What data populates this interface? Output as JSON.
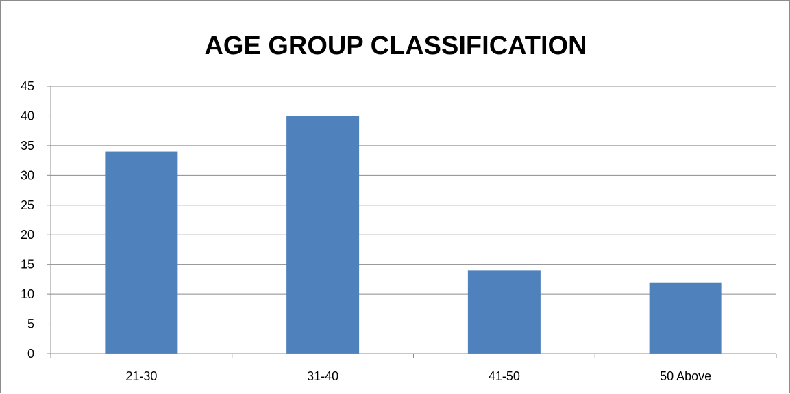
{
  "chart_data": {
    "type": "bar",
    "title": "AGE GROUP CLASSIFICATION",
    "xlabel": "",
    "ylabel": "",
    "categories": [
      "21-30",
      "31-40",
      "41-50",
      "50 Above"
    ],
    "values": [
      34,
      40,
      14,
      12
    ],
    "ylim": [
      0,
      45
    ],
    "ytick_step": 5,
    "y_ticks": [
      "0",
      "5",
      "10",
      "15",
      "20",
      "25",
      "30",
      "35",
      "40",
      "45"
    ],
    "grid": true,
    "legend": "none",
    "colors": {
      "bar": "#4f81bd",
      "grid": "#8c8c8c",
      "axis": "#8c8c8c"
    }
  }
}
